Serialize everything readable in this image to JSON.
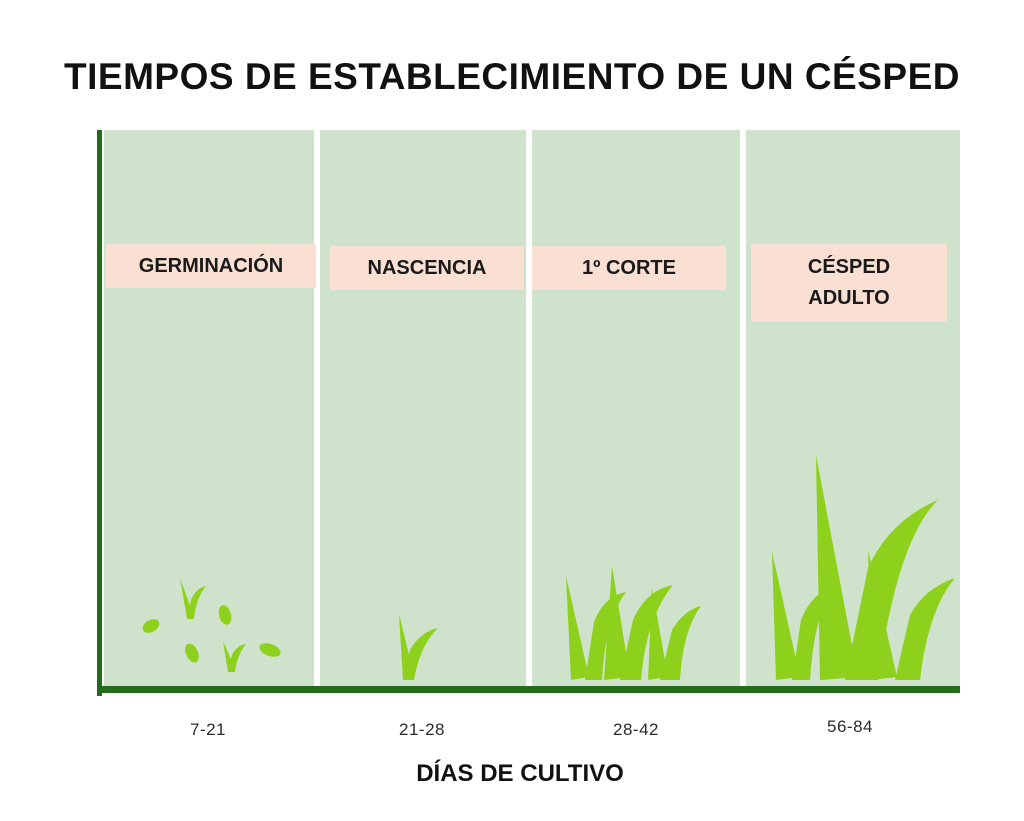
{
  "title": "TIEMPOS DE ESTABLECIMIENTO DE UN CÉSPED",
  "stages": [
    {
      "label": "GERMINACIÓN",
      "days": "7-21"
    },
    {
      "label": "NASCENCIA",
      "days": "21-28"
    },
    {
      "label": "1º CORTE",
      "days": "28-42"
    },
    {
      "label": "CÉSPED\nADULTO",
      "days": "56-84"
    }
  ],
  "x_axis_label": "DÍAS DE CULTIVO",
  "colors": {
    "panel": "#cfe2cb",
    "axis": "#236c1c",
    "label_box": "#f9e0d3",
    "grass": "#8ed11c"
  }
}
